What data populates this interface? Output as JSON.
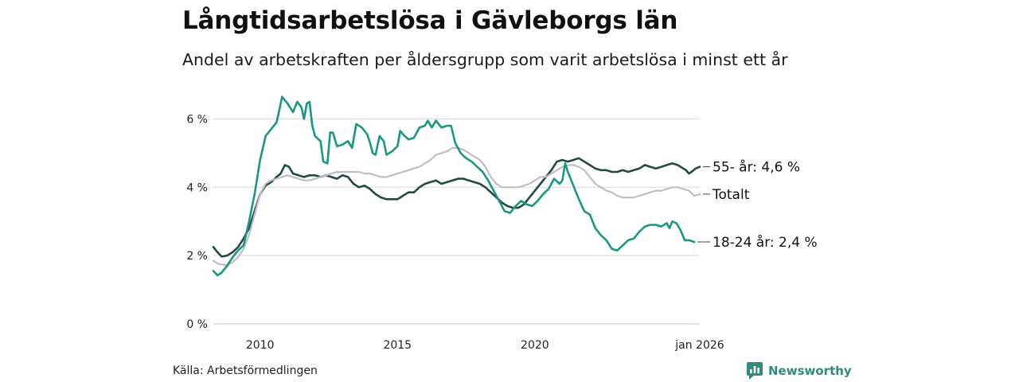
{
  "header": {
    "title": "Långtidsarbetslösa i Gävleborgs län",
    "subtitle": "Andel av arbetskraften per åldersgrupp som varit arbetslösa i minst ett år"
  },
  "footer": {
    "source": "Källa: Arbetsförmedlingen",
    "brand": "Newsworthy"
  },
  "colors": {
    "young": "#1a9683",
    "old": "#224a42",
    "total": "#c0bcc8",
    "grid": "#dddddd",
    "brand": "#2e8b7e"
  },
  "chart_data": {
    "type": "line",
    "title": "Långtidsarbetslösa i Gävleborgs län",
    "subtitle": "Andel av arbetskraften per åldersgrupp som varit arbetslösa i minst ett år",
    "xlabel": "",
    "ylabel": "",
    "xlim": [
      2008.3,
      2026.0
    ],
    "ylim": [
      0,
      6.5
    ],
    "y_ticks": [
      0,
      2,
      4,
      6
    ],
    "y_tick_labels": [
      "0 %",
      "2 %",
      "4 %",
      "6 %"
    ],
    "x_ticks": [
      2010,
      2015,
      2020,
      2026.0
    ],
    "x_tick_labels": [
      "2010",
      "2015",
      "2020",
      "jan 2026"
    ],
    "grid": true,
    "series": [
      {
        "name": "55- år",
        "end_label": "55- år: 4,6 %",
        "color_key": "old",
        "points": [
          [
            2008.3,
            2.25
          ],
          [
            2008.45,
            2.1
          ],
          [
            2008.6,
            1.97
          ],
          [
            2008.8,
            2.0
          ],
          [
            2009.0,
            2.1
          ],
          [
            2009.2,
            2.25
          ],
          [
            2009.4,
            2.5
          ],
          [
            2009.6,
            2.8
          ],
          [
            2009.8,
            3.3
          ],
          [
            2010.0,
            3.8
          ],
          [
            2010.2,
            4.05
          ],
          [
            2010.4,
            4.15
          ],
          [
            2010.6,
            4.3
          ],
          [
            2010.75,
            4.4
          ],
          [
            2010.9,
            4.65
          ],
          [
            2011.05,
            4.6
          ],
          [
            2011.2,
            4.4
          ],
          [
            2011.4,
            4.35
          ],
          [
            2011.6,
            4.3
          ],
          [
            2011.8,
            4.35
          ],
          [
            2012.0,
            4.35
          ],
          [
            2012.2,
            4.3
          ],
          [
            2012.4,
            4.35
          ],
          [
            2012.6,
            4.3
          ],
          [
            2012.8,
            4.25
          ],
          [
            2013.0,
            4.35
          ],
          [
            2013.2,
            4.3
          ],
          [
            2013.4,
            4.1
          ],
          [
            2013.6,
            4.0
          ],
          [
            2013.8,
            4.05
          ],
          [
            2014.0,
            3.95
          ],
          [
            2014.2,
            3.8
          ],
          [
            2014.4,
            3.7
          ],
          [
            2014.6,
            3.65
          ],
          [
            2014.8,
            3.65
          ],
          [
            2015.0,
            3.65
          ],
          [
            2015.2,
            3.75
          ],
          [
            2015.4,
            3.85
          ],
          [
            2015.6,
            3.85
          ],
          [
            2015.8,
            4.0
          ],
          [
            2016.0,
            4.1
          ],
          [
            2016.2,
            4.15
          ],
          [
            2016.4,
            4.2
          ],
          [
            2016.6,
            4.1
          ],
          [
            2016.8,
            4.15
          ],
          [
            2017.0,
            4.2
          ],
          [
            2017.2,
            4.25
          ],
          [
            2017.4,
            4.25
          ],
          [
            2017.6,
            4.2
          ],
          [
            2017.8,
            4.15
          ],
          [
            2018.0,
            4.1
          ],
          [
            2018.2,
            4.0
          ],
          [
            2018.4,
            3.85
          ],
          [
            2018.6,
            3.7
          ],
          [
            2018.8,
            3.55
          ],
          [
            2019.0,
            3.45
          ],
          [
            2019.2,
            3.4
          ],
          [
            2019.4,
            3.4
          ],
          [
            2019.6,
            3.5
          ],
          [
            2019.8,
            3.7
          ],
          [
            2020.0,
            3.9
          ],
          [
            2020.2,
            4.1
          ],
          [
            2020.4,
            4.3
          ],
          [
            2020.6,
            4.5
          ],
          [
            2020.8,
            4.75
          ],
          [
            2021.0,
            4.8
          ],
          [
            2021.2,
            4.75
          ],
          [
            2021.4,
            4.8
          ],
          [
            2021.6,
            4.85
          ],
          [
            2021.8,
            4.75
          ],
          [
            2022.0,
            4.65
          ],
          [
            2022.2,
            4.55
          ],
          [
            2022.4,
            4.5
          ],
          [
            2022.6,
            4.5
          ],
          [
            2022.8,
            4.45
          ],
          [
            2023.0,
            4.45
          ],
          [
            2023.2,
            4.5
          ],
          [
            2023.4,
            4.45
          ],
          [
            2023.6,
            4.5
          ],
          [
            2023.8,
            4.55
          ],
          [
            2024.0,
            4.65
          ],
          [
            2024.2,
            4.6
          ],
          [
            2024.4,
            4.55
          ],
          [
            2024.6,
            4.6
          ],
          [
            2024.8,
            4.65
          ],
          [
            2025.0,
            4.7
          ],
          [
            2025.2,
            4.65
          ],
          [
            2025.4,
            4.55
          ],
          [
            2025.5,
            4.5
          ],
          [
            2025.6,
            4.4
          ],
          [
            2025.7,
            4.45
          ],
          [
            2025.85,
            4.55
          ],
          [
            2026.0,
            4.6
          ]
        ]
      },
      {
        "name": "Totalt",
        "end_label": "Totalt",
        "color_key": "total",
        "points": [
          [
            2008.3,
            1.85
          ],
          [
            2008.5,
            1.75
          ],
          [
            2008.8,
            1.72
          ],
          [
            2009.0,
            1.8
          ],
          [
            2009.2,
            1.95
          ],
          [
            2009.4,
            2.2
          ],
          [
            2009.6,
            2.6
          ],
          [
            2009.8,
            3.2
          ],
          [
            2010.0,
            3.8
          ],
          [
            2010.2,
            4.1
          ],
          [
            2010.4,
            4.2
          ],
          [
            2010.6,
            4.25
          ],
          [
            2010.8,
            4.3
          ],
          [
            2011.0,
            4.35
          ],
          [
            2011.2,
            4.3
          ],
          [
            2011.4,
            4.25
          ],
          [
            2011.6,
            4.2
          ],
          [
            2011.8,
            4.2
          ],
          [
            2012.0,
            4.25
          ],
          [
            2012.2,
            4.3
          ],
          [
            2012.4,
            4.35
          ],
          [
            2012.6,
            4.4
          ],
          [
            2012.8,
            4.45
          ],
          [
            2013.0,
            4.45
          ],
          [
            2013.2,
            4.45
          ],
          [
            2013.4,
            4.45
          ],
          [
            2013.6,
            4.45
          ],
          [
            2013.8,
            4.4
          ],
          [
            2014.0,
            4.4
          ],
          [
            2014.2,
            4.35
          ],
          [
            2014.4,
            4.3
          ],
          [
            2014.6,
            4.3
          ],
          [
            2014.8,
            4.35
          ],
          [
            2015.0,
            4.4
          ],
          [
            2015.2,
            4.45
          ],
          [
            2015.4,
            4.5
          ],
          [
            2015.6,
            4.55
          ],
          [
            2015.8,
            4.6
          ],
          [
            2016.0,
            4.7
          ],
          [
            2016.2,
            4.8
          ],
          [
            2016.4,
            4.95
          ],
          [
            2016.6,
            5.0
          ],
          [
            2016.8,
            5.05
          ],
          [
            2017.0,
            5.15
          ],
          [
            2017.2,
            5.15
          ],
          [
            2017.4,
            5.1
          ],
          [
            2017.6,
            5.0
          ],
          [
            2017.8,
            4.9
          ],
          [
            2018.0,
            4.8
          ],
          [
            2018.2,
            4.6
          ],
          [
            2018.4,
            4.3
          ],
          [
            2018.6,
            4.1
          ],
          [
            2018.8,
            4.0
          ],
          [
            2019.0,
            4.0
          ],
          [
            2019.2,
            4.0
          ],
          [
            2019.4,
            4.0
          ],
          [
            2019.6,
            4.05
          ],
          [
            2019.8,
            4.1
          ],
          [
            2020.0,
            4.2
          ],
          [
            2020.2,
            4.3
          ],
          [
            2020.4,
            4.3
          ],
          [
            2020.6,
            4.4
          ],
          [
            2020.8,
            4.5
          ],
          [
            2021.0,
            4.6
          ],
          [
            2021.2,
            4.65
          ],
          [
            2021.4,
            4.65
          ],
          [
            2021.6,
            4.6
          ],
          [
            2021.8,
            4.5
          ],
          [
            2022.0,
            4.3
          ],
          [
            2022.2,
            4.1
          ],
          [
            2022.4,
            4.0
          ],
          [
            2022.6,
            3.9
          ],
          [
            2022.8,
            3.85
          ],
          [
            2023.0,
            3.75
          ],
          [
            2023.2,
            3.7
          ],
          [
            2023.4,
            3.7
          ],
          [
            2023.6,
            3.7
          ],
          [
            2023.8,
            3.75
          ],
          [
            2024.0,
            3.8
          ],
          [
            2024.2,
            3.85
          ],
          [
            2024.4,
            3.9
          ],
          [
            2024.6,
            3.9
          ],
          [
            2024.8,
            3.95
          ],
          [
            2025.0,
            4.0
          ],
          [
            2025.2,
            4.0
          ],
          [
            2025.4,
            3.95
          ],
          [
            2025.6,
            3.9
          ],
          [
            2025.8,
            3.75
          ],
          [
            2026.0,
            3.8
          ]
        ]
      },
      {
        "name": "18-24 år",
        "end_label": "18-24 år: 2,4 %",
        "color_key": "young",
        "points": [
          [
            2008.3,
            1.55
          ],
          [
            2008.45,
            1.42
          ],
          [
            2008.6,
            1.5
          ],
          [
            2008.8,
            1.7
          ],
          [
            2009.0,
            1.95
          ],
          [
            2009.2,
            2.15
          ],
          [
            2009.4,
            2.3
          ],
          [
            2009.6,
            3.0
          ],
          [
            2009.8,
            3.8
          ],
          [
            2010.0,
            4.8
          ],
          [
            2010.2,
            5.5
          ],
          [
            2010.4,
            5.7
          ],
          [
            2010.6,
            5.9
          ],
          [
            2010.7,
            6.25
          ],
          [
            2010.8,
            6.65
          ],
          [
            2010.9,
            6.55
          ],
          [
            2011.0,
            6.45
          ],
          [
            2011.2,
            6.2
          ],
          [
            2011.35,
            6.5
          ],
          [
            2011.5,
            6.35
          ],
          [
            2011.6,
            6.0
          ],
          [
            2011.7,
            6.45
          ],
          [
            2011.8,
            6.5
          ],
          [
            2011.9,
            5.8
          ],
          [
            2012.0,
            5.5
          ],
          [
            2012.2,
            5.35
          ],
          [
            2012.3,
            4.75
          ],
          [
            2012.45,
            4.7
          ],
          [
            2012.55,
            5.6
          ],
          [
            2012.65,
            5.6
          ],
          [
            2012.8,
            5.2
          ],
          [
            2013.0,
            5.25
          ],
          [
            2013.2,
            5.35
          ],
          [
            2013.35,
            5.15
          ],
          [
            2013.5,
            5.85
          ],
          [
            2013.7,
            5.75
          ],
          [
            2013.9,
            5.55
          ],
          [
            2014.0,
            5.3
          ],
          [
            2014.1,
            5.0
          ],
          [
            2014.2,
            4.95
          ],
          [
            2014.35,
            5.5
          ],
          [
            2014.5,
            5.35
          ],
          [
            2014.6,
            4.95
          ],
          [
            2014.8,
            5.05
          ],
          [
            2015.0,
            5.2
          ],
          [
            2015.1,
            5.65
          ],
          [
            2015.2,
            5.55
          ],
          [
            2015.4,
            5.4
          ],
          [
            2015.6,
            5.45
          ],
          [
            2015.8,
            5.75
          ],
          [
            2016.0,
            5.8
          ],
          [
            2016.1,
            5.95
          ],
          [
            2016.25,
            5.75
          ],
          [
            2016.4,
            5.95
          ],
          [
            2016.6,
            5.75
          ],
          [
            2016.8,
            5.8
          ],
          [
            2016.95,
            5.8
          ],
          [
            2017.1,
            5.3
          ],
          [
            2017.3,
            5.0
          ],
          [
            2017.5,
            4.85
          ],
          [
            2017.7,
            4.75
          ],
          [
            2017.9,
            4.6
          ],
          [
            2018.1,
            4.45
          ],
          [
            2018.3,
            4.2
          ],
          [
            2018.5,
            3.9
          ],
          [
            2018.7,
            3.6
          ],
          [
            2018.9,
            3.3
          ],
          [
            2019.1,
            3.25
          ],
          [
            2019.3,
            3.45
          ],
          [
            2019.5,
            3.6
          ],
          [
            2019.7,
            3.5
          ],
          [
            2019.9,
            3.45
          ],
          [
            2020.1,
            3.6
          ],
          [
            2020.3,
            3.8
          ],
          [
            2020.5,
            3.95
          ],
          [
            2020.7,
            4.25
          ],
          [
            2020.9,
            4.1
          ],
          [
            2021.0,
            4.2
          ],
          [
            2021.1,
            4.7
          ],
          [
            2021.2,
            4.45
          ],
          [
            2021.4,
            4.05
          ],
          [
            2021.6,
            3.65
          ],
          [
            2021.8,
            3.3
          ],
          [
            2022.0,
            3.2
          ],
          [
            2022.2,
            2.8
          ],
          [
            2022.4,
            2.6
          ],
          [
            2022.6,
            2.45
          ],
          [
            2022.8,
            2.2
          ],
          [
            2023.0,
            2.15
          ],
          [
            2023.2,
            2.3
          ],
          [
            2023.4,
            2.45
          ],
          [
            2023.6,
            2.5
          ],
          [
            2023.8,
            2.7
          ],
          [
            2024.0,
            2.85
          ],
          [
            2024.2,
            2.9
          ],
          [
            2024.4,
            2.9
          ],
          [
            2024.6,
            2.85
          ],
          [
            2024.8,
            2.95
          ],
          [
            2024.9,
            2.8
          ],
          [
            2025.0,
            3.0
          ],
          [
            2025.15,
            2.95
          ],
          [
            2025.3,
            2.75
          ],
          [
            2025.45,
            2.45
          ],
          [
            2025.6,
            2.45
          ],
          [
            2025.8,
            2.4
          ]
        ]
      }
    ]
  }
}
